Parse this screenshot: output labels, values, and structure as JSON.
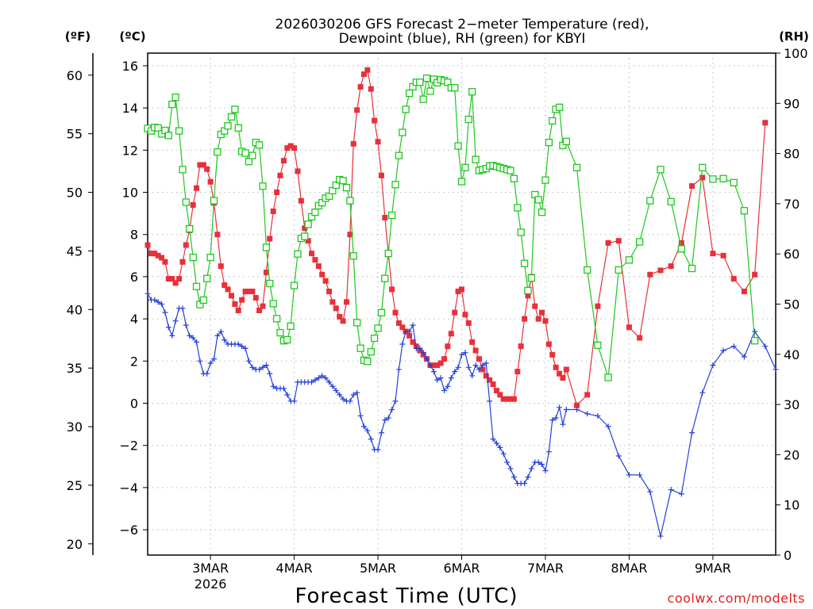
{
  "chart_data": {
    "type": "line",
    "title": "2026030206 GFS Forecast 2-meter Temperature (red), Dewpoint (blue), RH (green) for KBYI",
    "title_lines": [
      "2026030206 GFS Forecast 2−meter Temperature (red),",
      "Dewpoint (blue), RH (green) for KBYI"
    ],
    "xlabel": "Forecast Time (UTC)",
    "unit_labels": {
      "fahrenheit": "(ºF)",
      "celsius": "(ºC)",
      "rh": "(RH)"
    },
    "credit": "coolwx.com/modelts",
    "x_range_days": [
      2.25,
      9.75
    ],
    "x_ticks": [
      {
        "day": 3,
        "label": "3MAR",
        "sublabel": "2026"
      },
      {
        "day": 4,
        "label": "4MAR"
      },
      {
        "day": 5,
        "label": "5MAR"
      },
      {
        "day": 6,
        "label": "6MAR"
      },
      {
        "day": 7,
        "label": "7MAR"
      },
      {
        "day": 8,
        "label": "8MAR"
      },
      {
        "day": 9,
        "label": "9MAR"
      }
    ],
    "y_celsius": {
      "range": [
        -7.2,
        16.6
      ],
      "ticks": [
        "16",
        "14",
        "12",
        "10",
        "8",
        "6",
        "4",
        "2",
        "0",
        "−2",
        "−4",
        "−6"
      ],
      "tick_values": [
        16,
        14,
        12,
        10,
        8,
        6,
        4,
        2,
        0,
        -2,
        -4,
        -6
      ]
    },
    "y_fahrenheit": {
      "ticks": [
        "60",
        "55",
        "50",
        "45",
        "40",
        "35",
        "30",
        "25",
        "20"
      ],
      "tick_values": [
        60,
        55,
        50,
        45,
        40,
        35,
        30,
        25,
        20
      ]
    },
    "y_rh": {
      "range": [
        0,
        100
      ],
      "ticks": [
        "100",
        "90",
        "80",
        "70",
        "60",
        "50",
        "40",
        "30",
        "20",
        "10",
        "0"
      ],
      "tick_values": [
        100,
        90,
        80,
        70,
        60,
        50,
        40,
        30,
        20,
        10,
        0
      ]
    },
    "x_day_values": [
      2.25,
      2.292,
      2.333,
      2.375,
      2.417,
      2.458,
      2.5,
      2.542,
      2.583,
      2.625,
      2.667,
      2.708,
      2.75,
      2.792,
      2.833,
      2.875,
      2.917,
      2.958,
      3.0,
      3.042,
      3.083,
      3.125,
      3.167,
      3.208,
      3.25,
      3.292,
      3.333,
      3.375,
      3.417,
      3.458,
      3.5,
      3.542,
      3.583,
      3.625,
      3.667,
      3.708,
      3.75,
      3.792,
      3.833,
      3.875,
      3.917,
      3.958,
      4.0,
      4.042,
      4.083,
      4.125,
      4.167,
      4.208,
      4.25,
      4.292,
      4.333,
      4.375,
      4.417,
      4.458,
      4.5,
      4.542,
      4.583,
      4.625,
      4.667,
      4.708,
      4.75,
      4.792,
      4.833,
      4.875,
      4.917,
      4.958,
      5.0,
      5.042,
      5.083,
      5.125,
      5.167,
      5.208,
      5.25,
      5.292,
      5.333,
      5.375,
      5.417,
      5.458,
      5.5,
      5.542,
      5.583,
      5.625,
      5.667,
      5.708,
      5.75,
      5.792,
      5.833,
      5.875,
      5.917,
      5.958,
      6.0,
      6.042,
      6.083,
      6.125,
      6.167,
      6.208,
      6.25,
      6.292,
      6.333,
      6.375,
      6.417,
      6.458,
      6.5,
      6.542,
      6.583,
      6.625,
      6.667,
      6.708,
      6.75,
      6.792,
      6.833,
      6.875,
      6.917,
      6.958,
      7.0,
      7.042,
      7.083,
      7.125,
      7.167,
      7.208,
      7.25,
      7.375,
      7.5,
      7.625,
      7.75,
      7.875,
      8.0,
      8.125,
      8.25,
      8.375,
      8.5,
      8.625,
      8.75,
      8.875,
      9.0,
      9.125,
      9.25,
      9.375,
      9.5,
      9.625,
      9.75
    ],
    "series": [
      {
        "name": "Temperature",
        "units": "°C",
        "color": "#e8303a",
        "marker": "filled-square",
        "values": [
          7.5,
          7.1,
          7.1,
          7.0,
          6.9,
          6.7,
          5.9,
          5.9,
          5.7,
          5.9,
          6.7,
          7.5,
          8.2,
          9.4,
          10.2,
          11.3,
          11.3,
          11.1,
          10.5,
          9.5,
          8.0,
          6.5,
          5.6,
          5.4,
          5.1,
          4.7,
          4.4,
          4.9,
          5.3,
          5.3,
          5.3,
          5.0,
          4.4,
          4.6,
          6.2,
          7.8,
          9.1,
          10.0,
          10.8,
          11.5,
          12.1,
          12.2,
          12.1,
          11.0,
          9.6,
          8.3,
          7.7,
          7.1,
          6.8,
          6.5,
          6.1,
          5.8,
          5.3,
          4.8,
          4.5,
          4.1,
          3.9,
          4.8,
          8.0,
          12.3,
          13.9,
          15.0,
          15.6,
          15.8,
          14.9,
          13.4,
          12.4,
          10.8,
          8.8,
          7.1,
          5.4,
          4.3,
          3.8,
          3.6,
          3.4,
          3.2,
          2.9,
          2.7,
          2.5,
          2.3,
          2.1,
          1.8,
          1.8,
          1.8,
          1.9,
          2.1,
          2.7,
          3.3,
          4.3,
          5.3,
          5.4,
          4.2,
          3.8,
          2.9,
          2.5,
          2.1,
          1.6,
          1.3,
          1.1,
          0.9,
          0.6,
          0.4,
          0.2,
          0.2,
          0.2,
          0.2,
          1.5,
          2.7,
          4.0,
          5.1,
          6.0,
          4.6,
          4.0,
          4.3,
          3.9,
          2.8,
          2.3,
          1.7,
          1.4,
          1.2,
          1.6,
          -0.1,
          0.4,
          4.6,
          7.6,
          7.7,
          3.6,
          3.1,
          6.1,
          6.3,
          6.5,
          7.6,
          10.3,
          10.7,
          7.1,
          7.0,
          5.9,
          5.3,
          6.1,
          13.3
        ]
      },
      {
        "name": "Dewpoint",
        "units": "°C",
        "color": "#2440d8",
        "marker": "plus",
        "values": [
          5.2,
          4.9,
          4.9,
          4.8,
          4.7,
          4.3,
          3.6,
          3.2,
          3.9,
          4.5,
          4.5,
          3.7,
          3.2,
          3.1,
          2.9,
          2.0,
          1.4,
          1.4,
          1.9,
          2.1,
          3.2,
          3.4,
          3.0,
          2.8,
          2.8,
          2.8,
          2.8,
          2.7,
          2.6,
          2.0,
          1.7,
          1.6,
          1.6,
          1.7,
          1.8,
          1.4,
          0.8,
          0.7,
          0.7,
          0.7,
          0.4,
          0.1,
          0.1,
          1.0,
          1.0,
          1.0,
          1.0,
          1.0,
          1.1,
          1.2,
          1.3,
          1.2,
          1.0,
          0.8,
          0.6,
          0.4,
          0.2,
          0.1,
          0.1,
          0.4,
          0.5,
          -0.6,
          -1.1,
          -1.3,
          -1.7,
          -2.2,
          -2.2,
          -1.4,
          -0.8,
          -0.7,
          -0.3,
          0.1,
          1.6,
          2.8,
          3.4,
          3.4,
          3.7,
          2.6,
          2.6,
          2.4,
          2.1,
          1.8,
          1.5,
          1.1,
          1.2,
          0.6,
          0.8,
          1.2,
          1.5,
          1.7,
          2.3,
          2.4,
          1.7,
          1.3,
          1.8,
          1.6,
          1.8,
          1.9,
          0.1,
          -1.7,
          -1.9,
          -2.1,
          -2.4,
          -2.8,
          -3.1,
          -3.5,
          -3.8,
          -3.8,
          -3.8,
          -3.5,
          -3.1,
          -2.8,
          -2.8,
          -2.9,
          -3.2,
          -2.3,
          -0.8,
          -0.7,
          -0.2,
          -1.0,
          -0.3,
          -0.3,
          -0.5,
          -0.6,
          -1.1,
          -2.5,
          -3.4,
          -3.4,
          -4.2,
          -6.3,
          -4.1,
          -4.3,
          -1.4,
          0.5,
          1.8,
          2.5,
          2.7,
          2.2,
          3.4,
          2.7,
          1.6,
          1.0,
          0.8,
          1.1
        ]
      },
      {
        "name": "RH",
        "units": "%",
        "color": "#1ec81e",
        "marker": "open-square",
        "values": [
          85,
          84.5,
          85.2,
          85.1,
          83.9,
          84.6,
          83.6,
          89.8,
          91.2,
          84.5,
          76.8,
          70.3,
          65,
          59.3,
          53.5,
          49.9,
          50.8,
          55.1,
          59.3,
          70.6,
          80.3,
          83.8,
          84.5,
          85.5,
          87.3,
          88.8,
          85.1,
          80.4,
          80.1,
          78.4,
          79.6,
          82.2,
          81.7,
          73.5,
          61.3,
          54.1,
          50.1,
          47.1,
          44.3,
          42.7,
          42.9,
          45.6,
          53.7,
          60,
          63.1,
          63.5,
          65.9,
          67.4,
          68.3,
          69.6,
          70.2,
          71.1,
          71.5,
          72.6,
          73.7,
          74.8,
          74.6,
          73.2,
          70.6,
          59.6,
          46.3,
          41.2,
          38.8,
          38.6,
          40.5,
          43.2,
          45.2,
          48.3,
          55.1,
          60.1,
          67.7,
          73.8,
          79.6,
          84.2,
          88.8,
          92.0,
          93.3,
          94.2,
          94.2,
          90.8,
          95,
          92.4,
          94.8,
          94.1,
          94.7,
          94.5,
          94.2,
          93.1,
          93.1,
          81.5,
          74.4,
          77.2,
          86.8,
          92.3,
          78.8,
          76.6,
          76.8,
          77.0,
          77.5,
          77.6,
          77.4,
          77.2,
          77.0,
          76.8,
          76.6,
          75,
          69.2,
          64.3,
          58.1,
          52.7,
          55.2,
          71.8,
          70.8,
          68.3,
          74.7,
          82.2,
          86.5,
          88.8,
          89.2,
          81.6,
          82.4,
          77.2,
          56.8,
          41.8,
          35.4,
          56.8,
          58.8,
          62.4,
          70.6,
          76.8,
          70.4,
          61,
          57.1,
          77.2,
          74.9,
          75,
          74.2,
          68.6,
          42.7
        ]
      }
    ]
  }
}
